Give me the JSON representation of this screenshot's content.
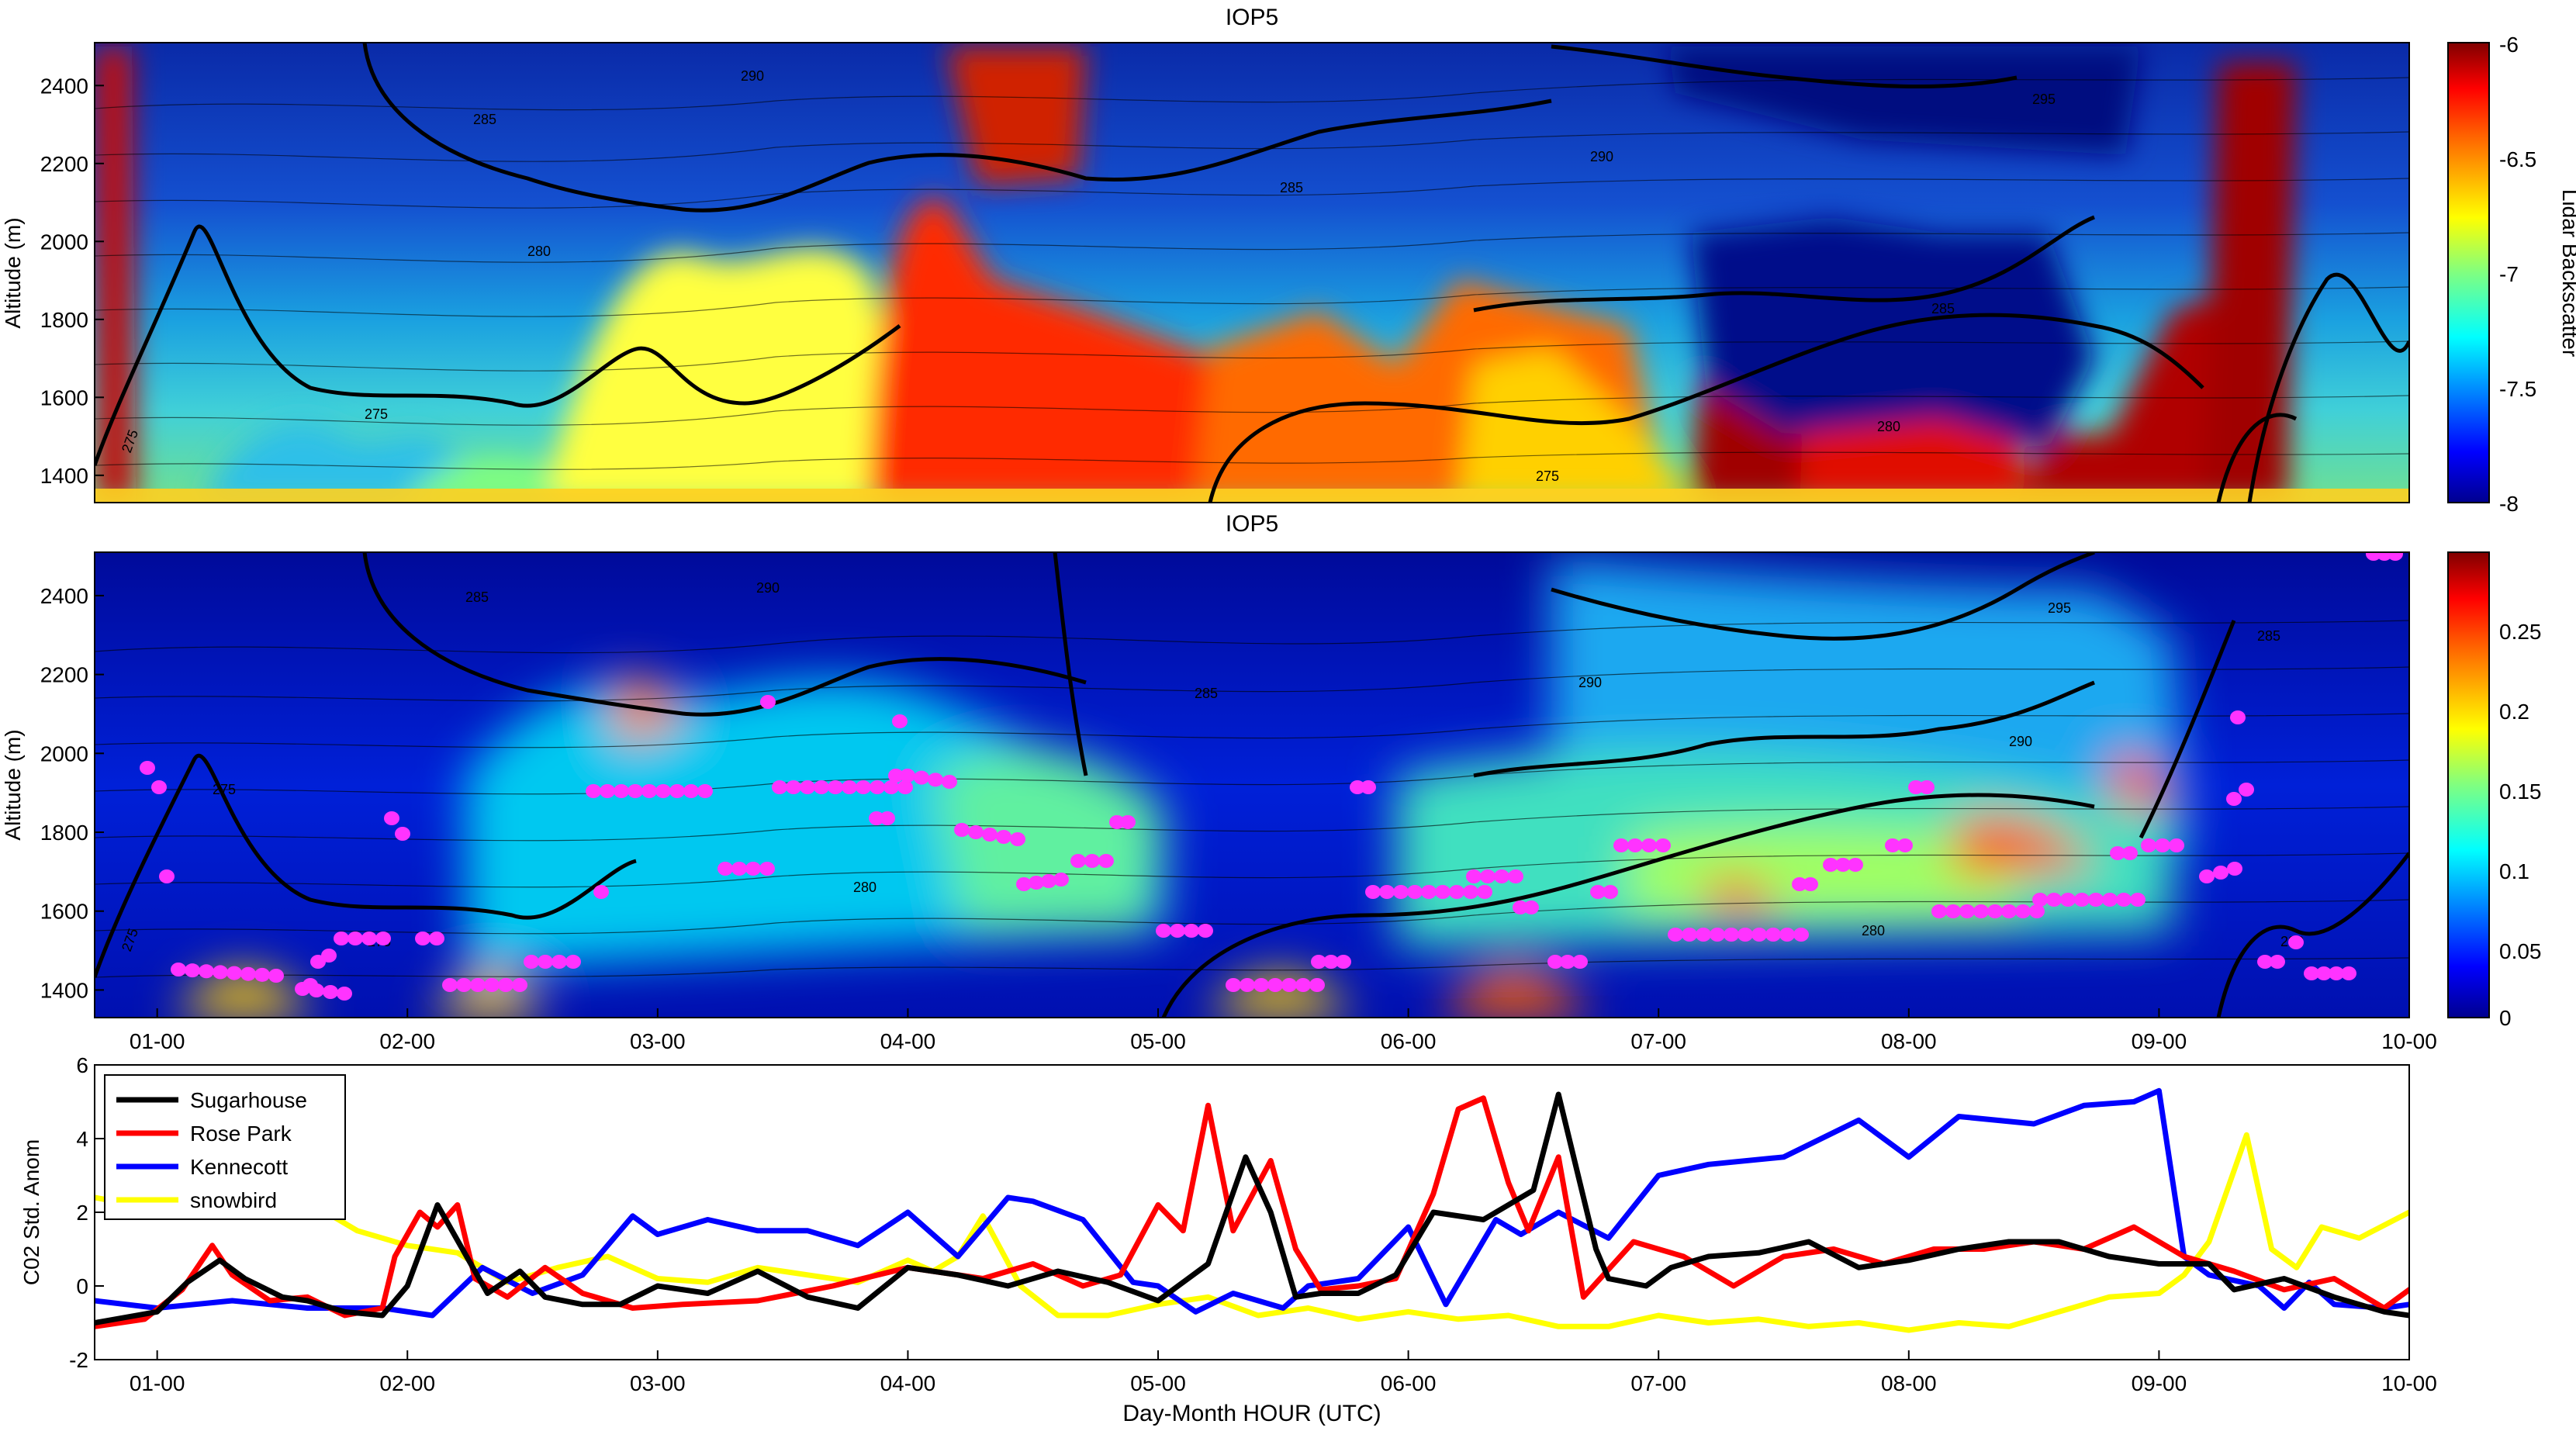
{
  "chart_data": [
    {
      "type": "heatmap",
      "title": "IOP5",
      "ylabel": "Altitude (m)",
      "ylim": [
        1330,
        2510
      ],
      "y_ticks": [
        "1400",
        "1600",
        "1800",
        "2000",
        "2200",
        "2400"
      ],
      "colorbar": {
        "label": "Lidar Backscatter",
        "range": [
          -8,
          -6
        ],
        "tick_labels": [
          "-6",
          "-6.5",
          "-7",
          "-7.5",
          "-8"
        ],
        "colors": [
          "#00008f",
          "#0000ff",
          "#0080ff",
          "#00ffff",
          "#80ff80",
          "#ffff00",
          "#ff8000",
          "#ff0000",
          "#800000"
        ]
      },
      "contour_labels": [
        "275",
        "280",
        "285",
        "290",
        "295"
      ]
    },
    {
      "type": "heatmap",
      "title": "IOP5",
      "ylabel": "Altitude (m)",
      "ylim": [
        1330,
        2510
      ],
      "y_ticks": [
        "1400",
        "1600",
        "1800",
        "2000",
        "2200",
        "2400"
      ],
      "colorbar": {
        "label": "",
        "range": [
          0,
          0.29
        ],
        "tick_labels": [
          "0.25",
          "0.2",
          "0.15",
          "0.1",
          "0.05",
          "0"
        ],
        "colors": [
          "#00008f",
          "#0000ff",
          "#0080ff",
          "#00ffff",
          "#80ff80",
          "#ffff00",
          "#ff8000",
          "#ff0000",
          "#800000"
        ]
      },
      "contour_labels": [
        "275",
        "280",
        "285",
        "290",
        "295"
      ],
      "marker_color": "#ff33ff"
    },
    {
      "type": "line",
      "ylabel": "C02 Std. Anom",
      "xlabel": "Day-Month HOUR (UTC)",
      "ylim": [
        -2,
        6
      ],
      "y_ticks": [
        "-2",
        "0",
        "2",
        "4",
        "6"
      ],
      "x_ticks": [
        "01-00",
        "02-00",
        "03-00",
        "04-00",
        "05-00",
        "06-00",
        "07-00",
        "08-00",
        "09-00",
        "10-00"
      ],
      "xlim": [
        -0.25,
        9.0
      ],
      "legend_position": "top-left",
      "series": [
        {
          "name": "Sugarhouse",
          "color": "#000000",
          "x": [
            -0.25,
            0,
            0.12,
            0.25,
            0.35,
            0.5,
            0.6,
            0.75,
            0.9,
            1.0,
            1.12,
            1.22,
            1.32,
            1.45,
            1.55,
            1.7,
            1.85,
            2.0,
            2.2,
            2.4,
            2.6,
            2.8,
            3.0,
            3.2,
            3.4,
            3.6,
            3.8,
            4.0,
            4.2,
            4.35,
            4.45,
            4.55,
            4.65,
            4.8,
            4.95,
            5.1,
            5.3,
            5.5,
            5.6,
            5.75,
            5.8,
            5.95,
            6.05,
            6.2,
            6.4,
            6.6,
            6.8,
            7.0,
            7.2,
            7.4,
            7.6,
            7.8,
            8.0,
            8.2,
            8.3,
            8.5,
            8.7,
            8.9,
            9.0
          ],
          "values": [
            -1.0,
            -0.7,
            0.1,
            0.7,
            0.2,
            -0.3,
            -0.4,
            -0.7,
            -0.8,
            0.0,
            2.2,
            1.0,
            -0.2,
            0.4,
            -0.3,
            -0.5,
            -0.5,
            0.0,
            -0.2,
            0.4,
            -0.3,
            -0.6,
            0.5,
            0.3,
            0.0,
            0.4,
            0.1,
            -0.4,
            0.6,
            3.5,
            2.0,
            -0.3,
            -0.2,
            -0.2,
            0.3,
            2.0,
            1.8,
            2.6,
            5.2,
            1.0,
            0.2,
            0.0,
            0.5,
            0.8,
            0.9,
            1.2,
            0.5,
            0.7,
            1.0,
            1.2,
            1.2,
            0.8,
            0.6,
            0.6,
            -0.1,
            0.2,
            -0.3,
            -0.7,
            -0.8
          ]
        },
        {
          "name": "Rose Park",
          "color": "#ff0000",
          "x": [
            -0.25,
            -0.05,
            0.1,
            0.22,
            0.3,
            0.45,
            0.6,
            0.75,
            0.9,
            0.95,
            1.05,
            1.12,
            1.2,
            1.27,
            1.4,
            1.55,
            1.7,
            1.9,
            2.1,
            2.4,
            2.7,
            3.0,
            3.3,
            3.5,
            3.7,
            3.85,
            4.0,
            4.1,
            4.2,
            4.3,
            4.45,
            4.55,
            4.65,
            4.8,
            4.95,
            5.1,
            5.2,
            5.3,
            5.4,
            5.48,
            5.6,
            5.7,
            5.9,
            6.1,
            6.3,
            6.5,
            6.7,
            6.9,
            7.1,
            7.3,
            7.5,
            7.7,
            7.9,
            8.1,
            8.3,
            8.5,
            8.7,
            8.9,
            9.0
          ],
          "values": [
            -1.1,
            -0.9,
            -0.1,
            1.1,
            0.3,
            -0.4,
            -0.3,
            -0.8,
            -0.6,
            0.8,
            2.0,
            1.6,
            2.2,
            0.2,
            -0.3,
            0.5,
            -0.2,
            -0.6,
            -0.5,
            -0.4,
            0.0,
            0.5,
            0.2,
            0.6,
            0.0,
            0.3,
            2.2,
            1.5,
            4.9,
            1.5,
            3.4,
            1.0,
            -0.1,
            0.0,
            0.2,
            2.5,
            4.8,
            5.1,
            2.8,
            1.5,
            3.5,
            -0.3,
            1.2,
            0.8,
            0.0,
            0.8,
            1.0,
            0.6,
            1.0,
            1.0,
            1.2,
            1.0,
            1.6,
            0.8,
            0.4,
            -0.1,
            0.2,
            -0.6,
            -0.1
          ]
        },
        {
          "name": "Kennecott",
          "color": "#0000ff",
          "x": [
            -0.25,
            0,
            0.3,
            0.6,
            0.9,
            1.1,
            1.3,
            1.5,
            1.7,
            1.9,
            2.0,
            2.2,
            2.4,
            2.6,
            2.8,
            3.0,
            3.2,
            3.4,
            3.5,
            3.7,
            3.9,
            4.0,
            4.15,
            4.3,
            4.5,
            4.6,
            4.8,
            5.0,
            5.15,
            5.35,
            5.45,
            5.6,
            5.8,
            6.0,
            6.2,
            6.5,
            6.8,
            7.0,
            7.2,
            7.5,
            7.7,
            7.9,
            8.0,
            8.1,
            8.2,
            8.4,
            8.5,
            8.6,
            8.7,
            8.9,
            9.0
          ],
          "values": [
            -0.4,
            -0.6,
            -0.4,
            -0.6,
            -0.6,
            -0.8,
            0.5,
            -0.2,
            0.3,
            1.9,
            1.4,
            1.8,
            1.5,
            1.5,
            1.1,
            2.0,
            0.8,
            2.4,
            2.3,
            1.8,
            0.1,
            0.0,
            -0.7,
            -0.2,
            -0.6,
            0.0,
            0.2,
            1.6,
            -0.5,
            1.8,
            1.4,
            2.0,
            1.3,
            3.0,
            3.3,
            3.5,
            4.5,
            3.5,
            4.6,
            4.4,
            4.9,
            5.0,
            5.3,
            0.8,
            0.3,
            0.0,
            -0.6,
            0.1,
            -0.5,
            -0.6,
            -0.5
          ]
        },
        {
          "name": "snowbird",
          "color": "#ffff00",
          "x": [
            -0.25,
            0,
            0.2,
            0.4,
            0.6,
            0.8,
            1.0,
            1.2,
            1.4,
            1.6,
            1.8,
            2.0,
            2.2,
            2.4,
            2.6,
            2.8,
            3.0,
            3.1,
            3.2,
            3.3,
            3.45,
            3.6,
            3.8,
            4.0,
            4.2,
            4.4,
            4.6,
            4.8,
            5.0,
            5.2,
            5.4,
            5.6,
            5.8,
            6.0,
            6.2,
            6.4,
            6.6,
            6.8,
            7.0,
            7.2,
            7.4,
            7.6,
            7.8,
            8.0,
            8.1,
            8.2,
            8.35,
            8.45,
            8.55,
            8.65,
            8.8,
            9.0
          ],
          "values": [
            2.4,
            2.1,
            2.3,
            2.2,
            2.3,
            1.5,
            1.1,
            0.9,
            0.1,
            0.5,
            0.8,
            0.2,
            0.1,
            0.5,
            0.3,
            0.1,
            0.7,
            0.4,
            0.8,
            1.9,
            0.0,
            -0.8,
            -0.8,
            -0.5,
            -0.3,
            -0.8,
            -0.6,
            -0.9,
            -0.7,
            -0.9,
            -0.8,
            -1.1,
            -1.1,
            -0.8,
            -1.0,
            -0.9,
            -1.1,
            -1.0,
            -1.2,
            -1.0,
            -1.1,
            -0.7,
            -0.3,
            -0.2,
            0.3,
            1.2,
            4.1,
            1.0,
            0.5,
            1.6,
            1.3,
            2.0
          ]
        }
      ]
    }
  ]
}
